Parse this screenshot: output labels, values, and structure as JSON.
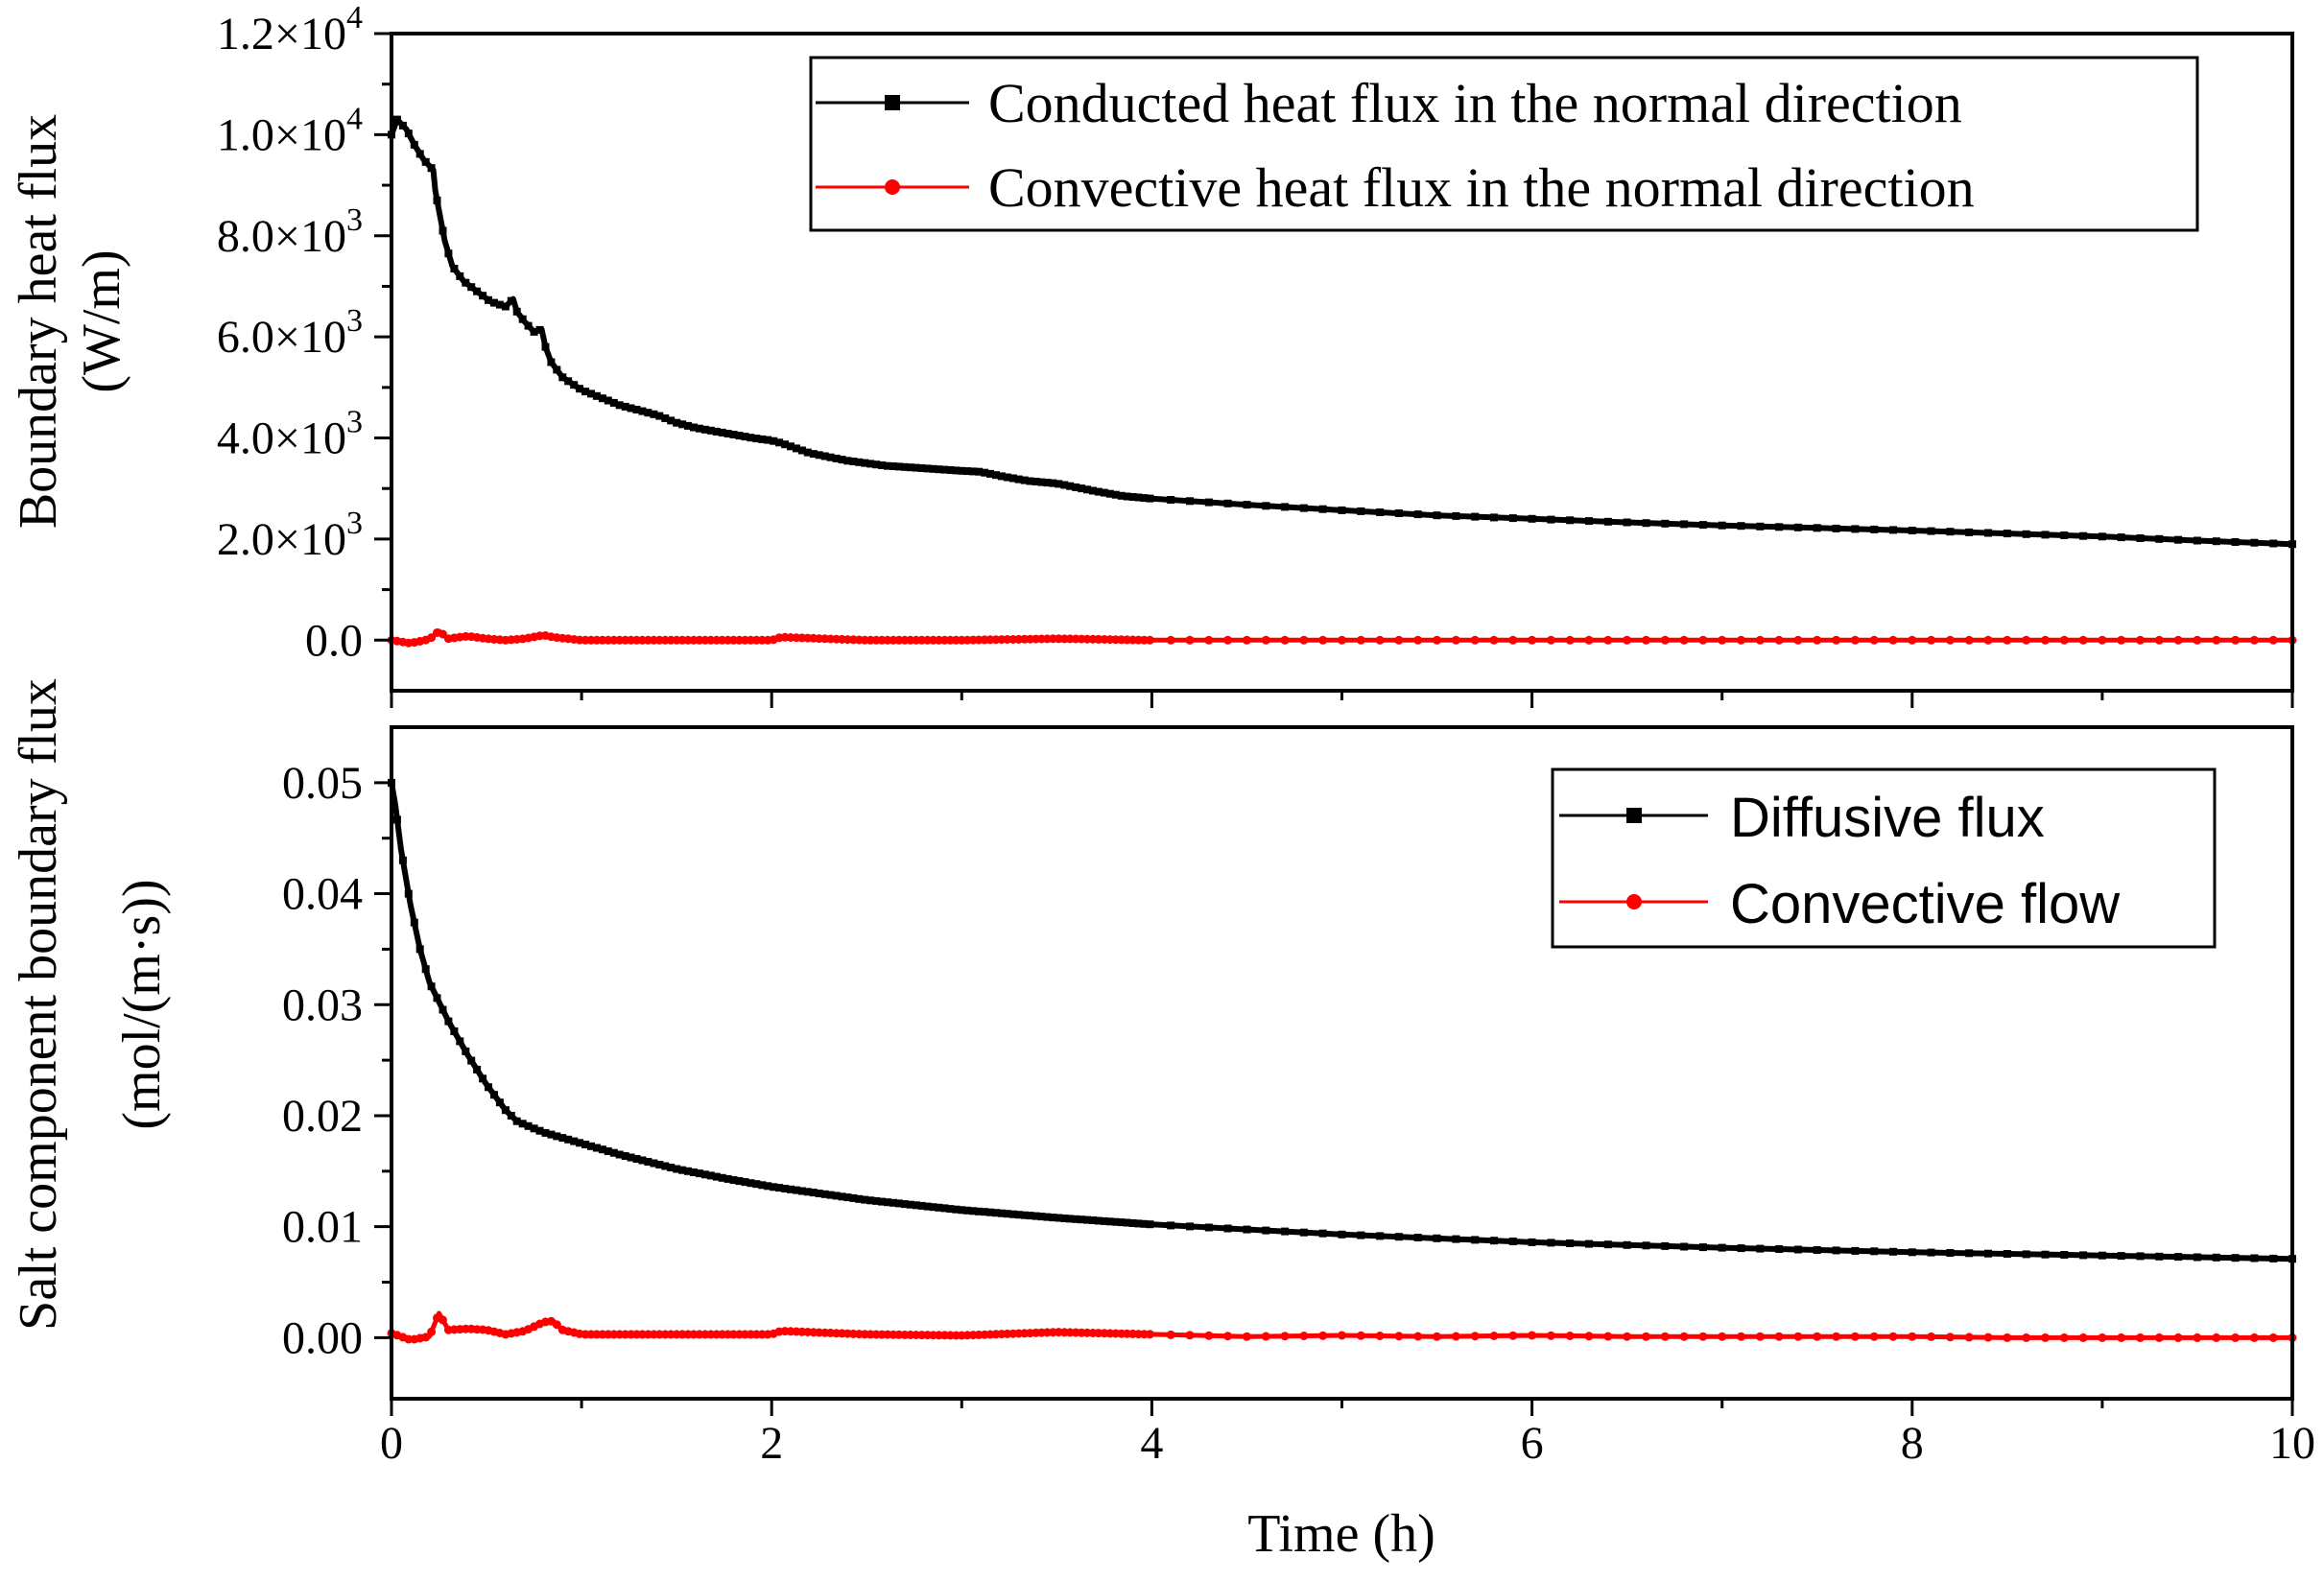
{
  "figure": {
    "xlabel": "Time (h)",
    "x_tick_labels": [
      "0",
      "2",
      "4",
      "6",
      "8",
      "10"
    ]
  },
  "colors": {
    "series_black": "#000000",
    "series_red": "#ff0000",
    "frame": "#000000"
  },
  "chart_data": [
    {
      "type": "line",
      "panel": "top",
      "title": "",
      "xlabel": "Time (h)",
      "ylabel_line1": "Boundary heat flux",
      "ylabel_line2": "(W/m)",
      "xlim": [
        0,
        10
      ],
      "ylim": [
        -1000,
        12000
      ],
      "y_ticks": [
        {
          "value": 12000,
          "mant": "1.2",
          "exp": "4"
        },
        {
          "value": 10000,
          "mant": "1.0",
          "exp": "4"
        },
        {
          "value": 8000,
          "mant": "8.0",
          "exp": "3"
        },
        {
          "value": 6000,
          "mant": "6.0",
          "exp": "3"
        },
        {
          "value": 4000,
          "mant": "4.0",
          "exp": "3"
        },
        {
          "value": 2000,
          "mant": "2.0",
          "exp": "3"
        },
        {
          "value": 0,
          "mant": "0.0",
          "exp": ""
        }
      ],
      "legend": "top-right",
      "series": [
        {
          "name": "Conducted heat flux in the normal direction",
          "color": "#000000",
          "marker": "square",
          "x": [
            0,
            0.03,
            0.08,
            0.12,
            0.17,
            0.22,
            0.23,
            0.25,
            0.28,
            0.32,
            0.38,
            0.45,
            0.52,
            0.6,
            0.64,
            0.66,
            0.7,
            0.75,
            0.79,
            0.81,
            0.84,
            0.9,
            1.0,
            1.1,
            1.2,
            1.35,
            1.4,
            1.5,
            1.6,
            1.75,
            1.9,
            2.0,
            2.05,
            2.2,
            2.4,
            2.6,
            2.8,
            3.0,
            3.1,
            3.2,
            3.35,
            3.5,
            3.7,
            3.85,
            4.0,
            4.5,
            5.0,
            5.5,
            6.0,
            6.5,
            7.0,
            7.5,
            8.0,
            8.5,
            9.0,
            9.5,
            10.0
          ],
          "y": [
            10000,
            10300,
            10100,
            9800,
            9500,
            9300,
            8900,
            8500,
            7900,
            7400,
            7100,
            6900,
            6700,
            6600,
            6750,
            6500,
            6300,
            6100,
            6150,
            5800,
            5500,
            5200,
            4950,
            4800,
            4650,
            4500,
            4450,
            4300,
            4200,
            4100,
            4000,
            3950,
            3900,
            3700,
            3550,
            3450,
            3400,
            3350,
            3330,
            3250,
            3150,
            3100,
            2950,
            2850,
            2800,
            2680,
            2570,
            2470,
            2400,
            2330,
            2270,
            2220,
            2170,
            2110,
            2050,
            1970,
            1900
          ]
        },
        {
          "name": "Convective heat flux in the normal direction",
          "color": "#ff0000",
          "marker": "circle",
          "x": [
            0,
            0.1,
            0.2,
            0.25,
            0.3,
            0.4,
            0.5,
            0.6,
            0.7,
            0.8,
            0.85,
            0.9,
            1.0,
            1.5,
            2.0,
            2.05,
            2.5,
            3.0,
            3.5,
            4.0,
            4.5,
            5.0,
            5.5,
            6.0,
            6.5,
            7.0,
            7.5,
            8.0,
            8.5,
            9.0,
            9.5,
            10.0
          ],
          "y": [
            0,
            -60,
            20,
            180,
            30,
            80,
            30,
            0,
            30,
            100,
            60,
            40,
            0,
            0,
            0,
            60,
            0,
            0,
            30,
            0,
            0,
            0,
            0,
            0,
            0,
            0,
            0,
            0,
            0,
            0,
            0,
            0
          ]
        }
      ]
    },
    {
      "type": "line",
      "panel": "bottom",
      "title": "",
      "xlabel": "Time (h)",
      "ylabel_line1": "Salt component boundary flux",
      "ylabel_line2": "(mol/(m·s))",
      "xlim": [
        0,
        10
      ],
      "ylim": [
        -0.0055,
        0.055
      ],
      "y_ticks": [
        {
          "value": 0.05,
          "label": "0.05"
        },
        {
          "value": 0.04,
          "label": "0.04"
        },
        {
          "value": 0.03,
          "label": "0.03"
        },
        {
          "value": 0.02,
          "label": "0.02"
        },
        {
          "value": 0.01,
          "label": "0.01"
        },
        {
          "value": 0.0,
          "label": "0.00"
        }
      ],
      "legend": "top-right",
      "series": [
        {
          "name": "Diffusive flux",
          "color": "#000000",
          "marker": "square",
          "x": [
            0,
            0.02,
            0.05,
            0.1,
            0.15,
            0.2,
            0.3,
            0.4,
            0.5,
            0.6,
            0.66,
            0.7,
            0.8,
            1.0,
            1.2,
            1.5,
            1.8,
            2.0,
            2.5,
            3.0,
            3.5,
            4.0,
            5.0,
            6.0,
            7.0,
            8.0,
            9.0,
            10.0
          ],
          "y": [
            0.05,
            0.048,
            0.044,
            0.039,
            0.035,
            0.032,
            0.0285,
            0.0255,
            0.0228,
            0.0205,
            0.0195,
            0.0192,
            0.0185,
            0.0175,
            0.0165,
            0.0152,
            0.0142,
            0.0136,
            0.0124,
            0.0115,
            0.0108,
            0.0102,
            0.0093,
            0.0086,
            0.0081,
            0.0077,
            0.0074,
            0.0071
          ]
        },
        {
          "name": "Convective flow",
          "color": "#ff0000",
          "marker": "circle",
          "x": [
            0,
            0.1,
            0.2,
            0.25,
            0.3,
            0.4,
            0.5,
            0.6,
            0.7,
            0.8,
            0.85,
            0.9,
            1.0,
            1.5,
            2.0,
            2.05,
            2.5,
            3.0,
            3.5,
            4.0,
            4.5,
            5.0,
            5.5,
            6.0,
            6.5,
            7.0,
            7.5,
            8.0,
            8.5,
            9.0,
            9.5,
            10.0
          ],
          "y": [
            0.0004,
            -0.0002,
            0.0001,
            0.0022,
            0.0007,
            0.0008,
            0.0007,
            0.0003,
            0.0006,
            0.0014,
            0.0015,
            0.0007,
            0.0003,
            0.0003,
            0.0003,
            0.0006,
            0.0003,
            0.0002,
            0.0005,
            0.0003,
            0.0001,
            0.0002,
            0.0001,
            0.0002,
            0.0001,
            0.0001,
            0.0001,
            0.0001,
            0.0,
            0.0,
            0.0,
            0.0
          ]
        }
      ]
    }
  ]
}
